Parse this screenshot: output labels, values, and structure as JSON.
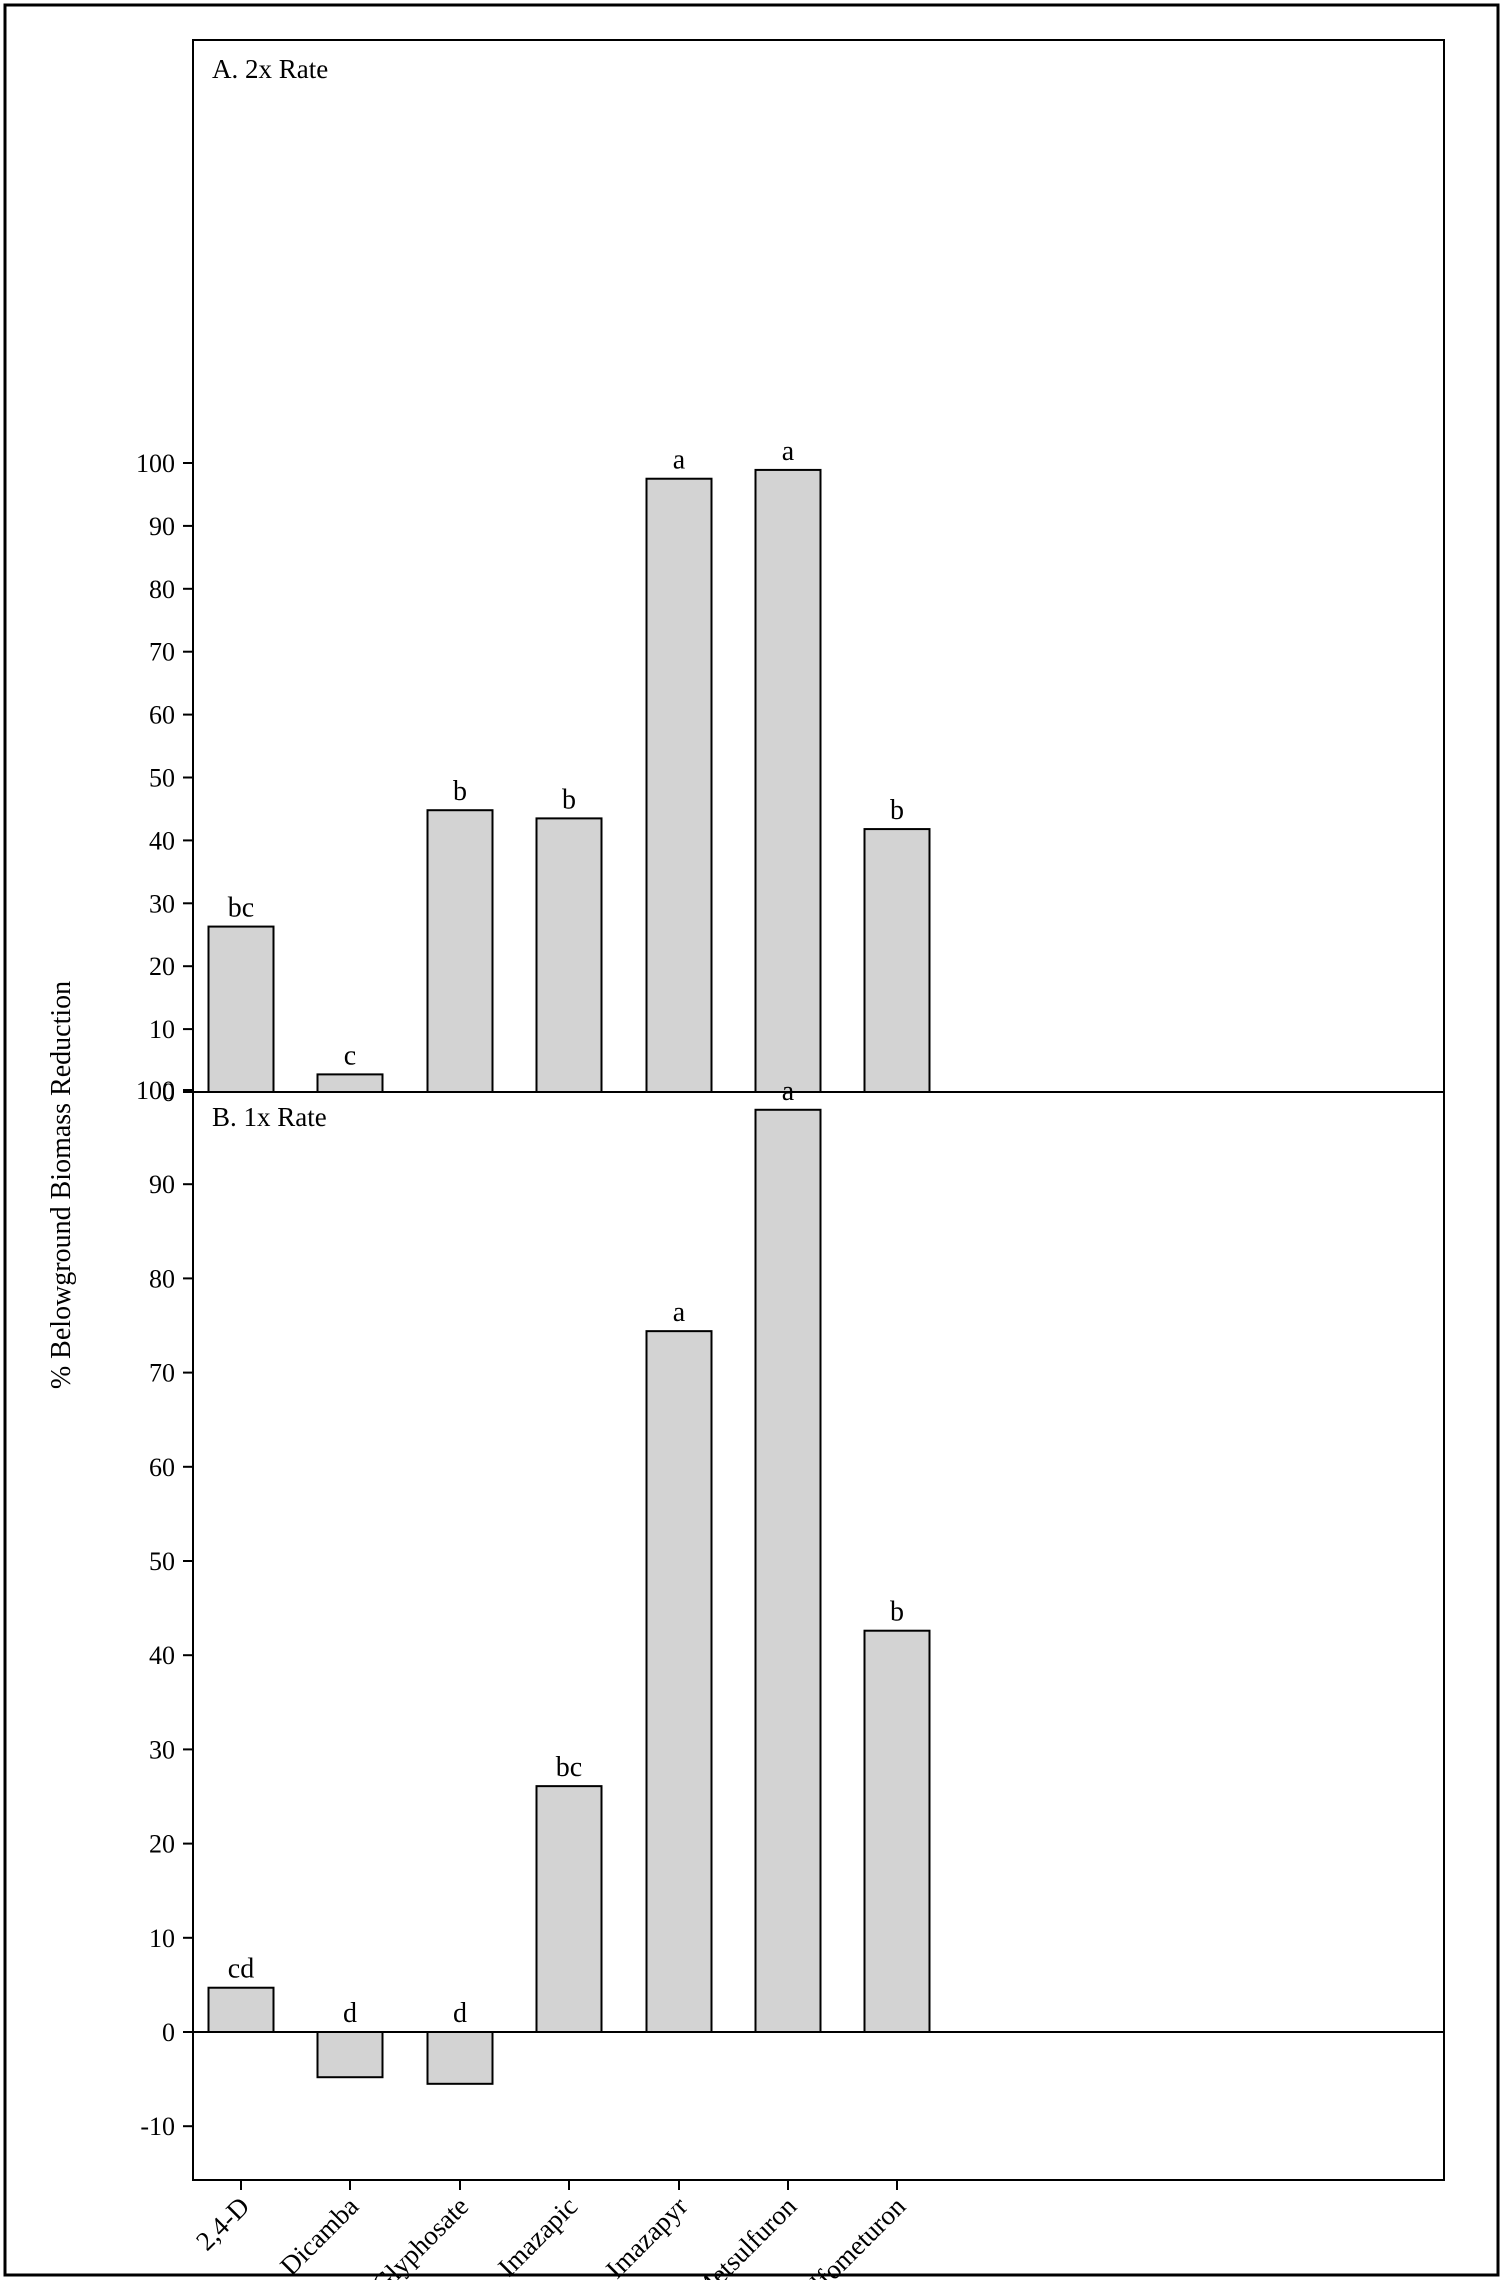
{
  "chart_data": {
    "type": "bar",
    "ylabel": "% Belowground Biomass Reduction",
    "categories": [
      "2,4-D",
      "Dicamba",
      "Glyphosate",
      "Imazapic",
      "Imazapyr",
      "Metsulfuron",
      "Sulfometuron"
    ],
    "bar_color": "#d3d3d3",
    "panels": [
      {
        "title": "A. 2x Rate",
        "ylim": [
          0,
          105
        ],
        "yticks": [
          0,
          10,
          20,
          30,
          40,
          50,
          60,
          70,
          80,
          90,
          100
        ],
        "values": [
          26.3,
          2.8,
          44.8,
          43.5,
          97.5,
          98.9,
          41.8
        ],
        "labels": [
          "bc",
          "c",
          "b",
          "b",
          "a",
          "a",
          "b"
        ]
      },
      {
        "title": "B. 1x Rate",
        "ylim": [
          -10,
          105
        ],
        "yticks": [
          -10,
          0,
          10,
          20,
          30,
          40,
          50,
          60,
          70,
          80,
          90,
          100
        ],
        "values": [
          4.7,
          -4.8,
          -5.5,
          26.1,
          74.4,
          97.9,
          42.6
        ],
        "labels": [
          "cd",
          "d",
          "d",
          "bc",
          "a",
          "a",
          "b"
        ]
      }
    ]
  }
}
